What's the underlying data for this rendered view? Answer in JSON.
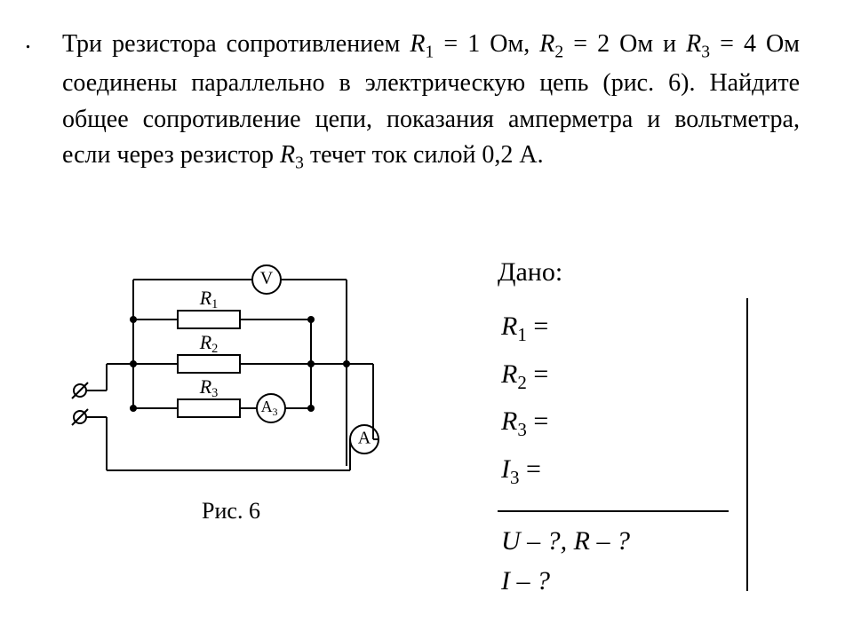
{
  "problem": {
    "leading_period": ".",
    "text_html": "Три резистора сопротивлением <span class='var'>R</span><span class='sub'>1</span> = 1 Ом, <span class='var'>R</span><span class='sub'>2</span> = 2 Ом и <span class='var'>R</span><span class='sub'>3</span> = 4 Ом соединены параллельно в электричес­кую цепь (рис. 6). Найдите общее сопротивление цепи, показания амперметра и вольтметра, если че­рез резистор <span class='var'>R</span><span class='sub'>3</span> течет ток силой 0,2 А."
  },
  "circuit": {
    "caption": "Рис. 6",
    "labels": {
      "R1": "R",
      "R1sub": "1",
      "R2": "R",
      "R2sub": "2",
      "R3": "R",
      "R3sub": "3",
      "V": "V",
      "A": "A",
      "A3": "A",
      "A3sub": "3"
    },
    "stroke": "#000000",
    "stroke_width": 2,
    "fill": "#ffffff",
    "font_size_label": 22,
    "font_size_meter": 20
  },
  "given": {
    "title": "Дано:",
    "lines": [
      {
        "sym": "R",
        "sub": "1",
        "rhs": " ="
      },
      {
        "sym": "R",
        "sub": "2",
        "rhs": " ="
      },
      {
        "sym": "R",
        "sub": "3",
        "rhs": " ="
      },
      {
        "sym": "I",
        "sub": "3",
        "rhs": " ="
      }
    ],
    "find_line1": "U – ?, R – ?",
    "find_line2": "I – ?"
  }
}
